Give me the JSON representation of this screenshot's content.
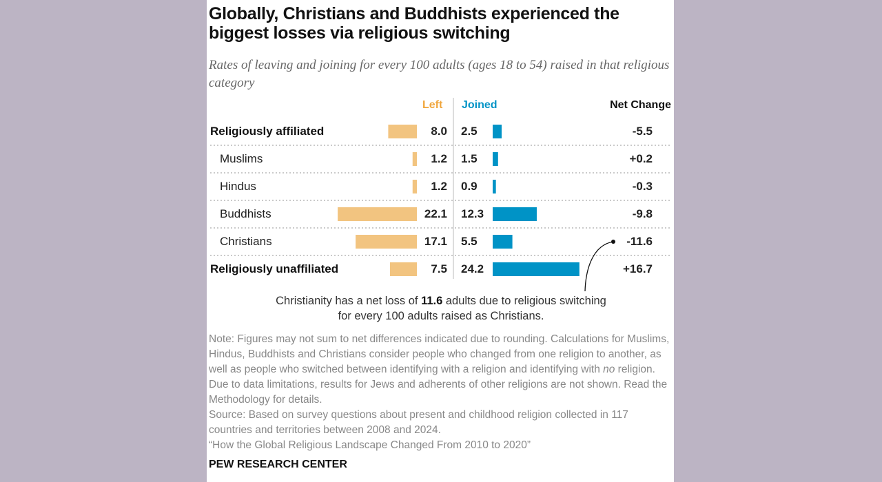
{
  "title": "Globally, Christians and Buddhists experienced the biggest losses via religious switching",
  "subtitle": "Rates of leaving and joining for every 100 adults (ages 18 to 54) raised in that religious category",
  "chart_data": {
    "type": "bar",
    "columns": {
      "left": "Left",
      "joined": "Joined",
      "net": "Net Change"
    },
    "colors": {
      "left": "#f2c480",
      "joined": "#0093c6"
    },
    "categories": [
      "Religiously affiliated",
      "Muslims",
      "Hindus",
      "Buddhists",
      "Christians",
      "Religiously unaffiliated"
    ],
    "bold_categories": [
      "Religiously affiliated",
      "Religiously unaffiliated"
    ],
    "series": [
      {
        "name": "Left",
        "values": [
          8.0,
          1.2,
          1.2,
          22.1,
          17.1,
          7.5
        ],
        "labels": [
          "8.0",
          "1.2",
          "1.2",
          "22.1",
          "17.1",
          "7.5"
        ]
      },
      {
        "name": "Joined",
        "values": [
          2.5,
          1.5,
          0.9,
          12.3,
          5.5,
          24.2
        ],
        "labels": [
          "2.5",
          "1.5",
          "0.9",
          "12.3",
          "5.5",
          "24.2"
        ]
      }
    ],
    "net_change": [
      "-5.5",
      "+0.2",
      "-0.3",
      "-9.8",
      "-11.6",
      "+16.7"
    ],
    "annotation": {
      "target": "Christians",
      "before": "Christianity has a net loss of ",
      "bold": "11.6",
      "after": " adults due to religious switching for every 100 adults raised as Christians."
    }
  },
  "note": {
    "note_pre": "Note: Figures may not sum to net differences indicated due to rounding. Calculations for Muslims, Hindus, Buddhists and Christians consider people who changed from one religion to another, as well as people who switched between identifying with a religion and identifying with ",
    "note_em": "no",
    "note_post": " religion. Due to data limitations, results for Jews and adherents of other religions are not shown. Read the Methodology for details.",
    "source": "Source: Based on survey questions about present and childhood religion collected in 117 countries and territories between 2008 and 2024.",
    "report": "“How the Global Religious Landscape Changed From 2010 to 2020”"
  },
  "brand": "PEW RESEARCH CENTER"
}
